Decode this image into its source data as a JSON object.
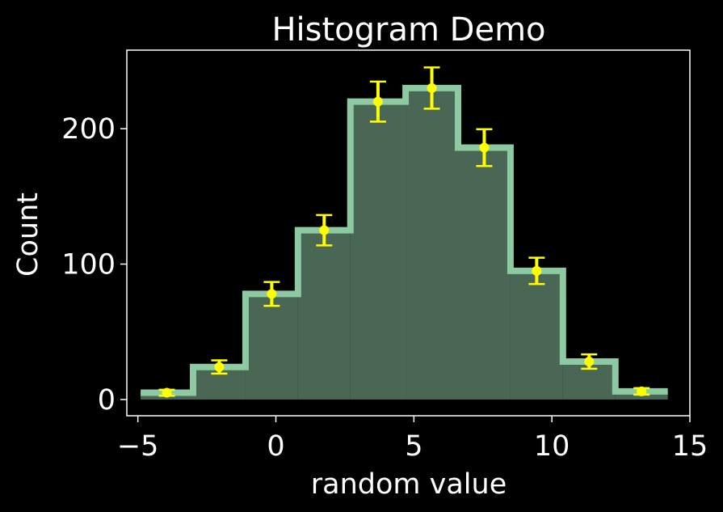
{
  "chart_data": {
    "type": "bar",
    "title": "Histogram Demo",
    "xlabel": "random value",
    "ylabel": "Count",
    "xlim": [
      -5.4,
      15.0
    ],
    "ylim": [
      -12,
      258
    ],
    "xticks": [
      {
        "value": -5,
        "label": "−5"
      },
      {
        "value": 0,
        "label": "0"
      },
      {
        "value": 5,
        "label": "5"
      },
      {
        "value": 10,
        "label": "10"
      },
      {
        "value": 15,
        "label": "15"
      }
    ],
    "yticks": [
      {
        "value": 0,
        "label": "0"
      },
      {
        "value": 100,
        "label": "100"
      },
      {
        "value": 200,
        "label": "200"
      }
    ],
    "bin_edges": [
      -4.9,
      -3.0,
      -1.1,
      0.8,
      2.7,
      4.7,
      6.6,
      8.5,
      10.4,
      12.3,
      14.2
    ],
    "counts": [
      5,
      24,
      78,
      125,
      220,
      230,
      186,
      95,
      28,
      6
    ],
    "errors": [
      2.2,
      4.9,
      8.8,
      11.2,
      14.8,
      15.2,
      13.6,
      9.7,
      5.3,
      2.4
    ],
    "colors": {
      "background": "#000000",
      "fill": "#4a6755",
      "step": "#8dcaa2",
      "errorbar": "#ffff00",
      "axes": "#ffffff"
    }
  }
}
